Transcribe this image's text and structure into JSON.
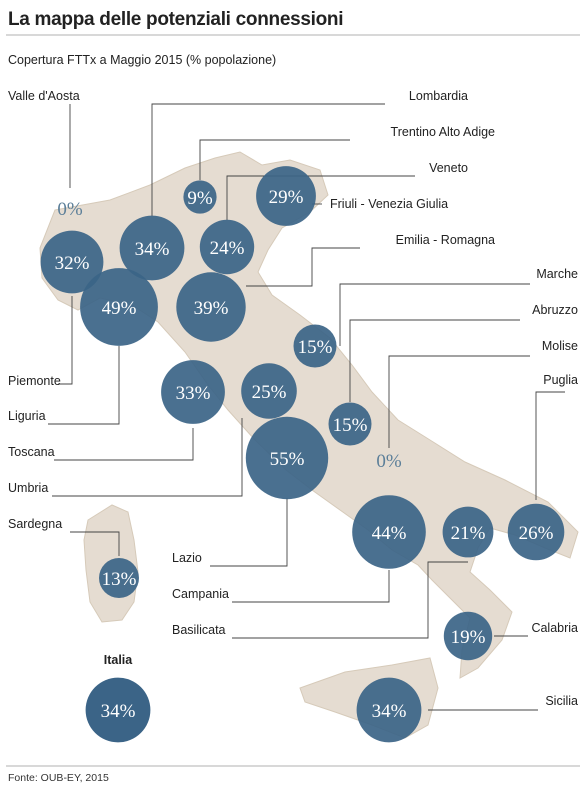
{
  "chart_data": {
    "type": "bubble-map",
    "title": "La mappa delle potenziali connessioni",
    "subtitle": "Copertura FTTx a Maggio 2015 (% popolazione)",
    "source": "Fonte: OUB-EY, 2015",
    "unit": "%",
    "colors": {
      "bubble": "#3b6487",
      "zero_text": "#5c7f99",
      "land": "#e5dcd1"
    },
    "regions": [
      {
        "name": "Valle d'Aosta",
        "value": 0
      },
      {
        "name": "Lombardia",
        "value": 34
      },
      {
        "name": "Trentino Alto Adige",
        "value": 9
      },
      {
        "name": "Veneto",
        "value": 24
      },
      {
        "name": "Friuli - Venezia Giulia",
        "value": 29
      },
      {
        "name": "Emilia - Romagna",
        "value": 39
      },
      {
        "name": "Marche",
        "value": 15
      },
      {
        "name": "Abruzzo",
        "value": 15
      },
      {
        "name": "Molise",
        "value": 0
      },
      {
        "name": "Puglia",
        "value": 26
      },
      {
        "name": "Piemonte",
        "value": 32
      },
      {
        "name": "Liguria",
        "value": 49
      },
      {
        "name": "Toscana",
        "value": 33
      },
      {
        "name": "Umbria",
        "value": 25
      },
      {
        "name": "Lazio",
        "value": 55
      },
      {
        "name": "Campania",
        "value": 44
      },
      {
        "name": "Basilicata",
        "value": 21
      },
      {
        "name": "Calabria",
        "value": 19
      },
      {
        "name": "Sicilia",
        "value": 34
      },
      {
        "name": "Sardegna",
        "value": 13
      }
    ],
    "total": {
      "name": "Italia",
      "value": 34
    }
  }
}
